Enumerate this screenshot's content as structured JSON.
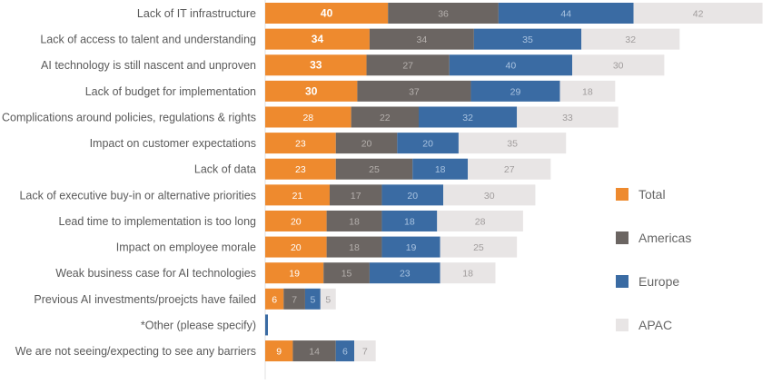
{
  "chart_data": {
    "type": "bar",
    "orientation": "horizontal",
    "stacked": true,
    "title": "",
    "xlabel": "",
    "ylabel": "",
    "grid": false,
    "legend_position": "right",
    "categories": [
      "Lack of IT infrastructure",
      "Lack of access to talent and understanding",
      "AI technology is still nascent and unproven",
      "Lack of budget for implementation",
      "Complications around policies, regulations & rights",
      "Impact on customer expectations",
      "Lack of data",
      "Lack of executive buy-in or alternative priorities",
      "Lead time to implementation is too long",
      "Impact on employee morale",
      "Weak business case for AI technologies",
      "Previous AI investments/proejcts have failed",
      "*Other (please specify)",
      "We are not seeing/expecting to see any barriers"
    ],
    "series": [
      {
        "name": "Total",
        "color": "#ee8a2e",
        "label_color": "#ffffff",
        "values": [
          40,
          34,
          33,
          30,
          28,
          23,
          23,
          21,
          20,
          20,
          19,
          6,
          0,
          9
        ]
      },
      {
        "name": "Americas",
        "color": "#6b6562",
        "label_color": "#b5b0ad",
        "values": [
          36,
          34,
          27,
          37,
          22,
          20,
          25,
          17,
          18,
          18,
          15,
          7,
          0,
          14
        ]
      },
      {
        "name": "Europe",
        "color": "#3a6ba3",
        "label_color": "#a9c3e0",
        "values": [
          44,
          35,
          40,
          29,
          32,
          20,
          18,
          20,
          18,
          19,
          23,
          5,
          1,
          6
        ]
      },
      {
        "name": "APAC",
        "color": "#e8e5e5",
        "label_color": "#a09c9c",
        "values": [
          42,
          32,
          30,
          18,
          33,
          35,
          27,
          30,
          28,
          25,
          18,
          5,
          0,
          7
        ]
      }
    ],
    "bold_total_labels_for_top_rows": 4
  }
}
